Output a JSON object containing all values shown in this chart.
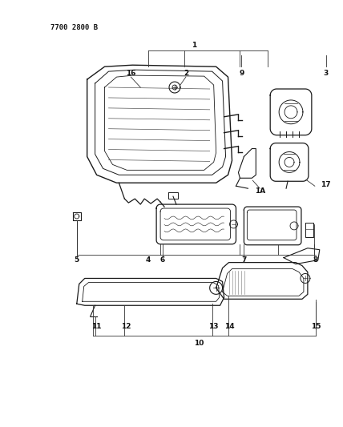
{
  "title": "7700 2800 B",
  "bg_color": "#ffffff",
  "line_color": "#1a1a1a",
  "label_color": "#111111",
  "fig_width": 4.28,
  "fig_height": 5.33,
  "dpi": 100
}
